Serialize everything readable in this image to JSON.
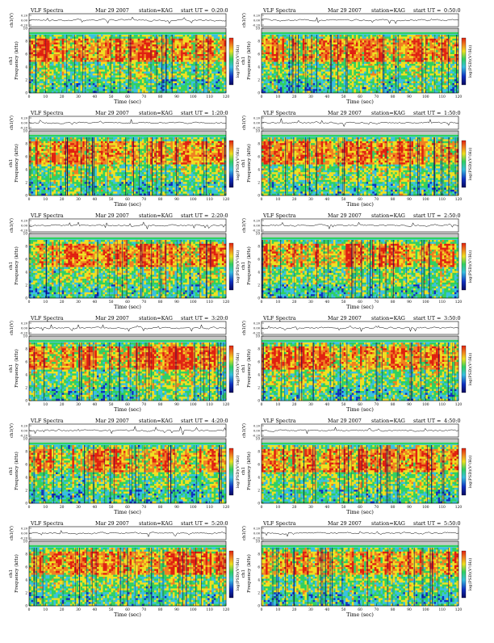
{
  "page_title": "VLF Spectra",
  "shared": {
    "date": "Mar 29 2007",
    "station_label": "station=KAG",
    "start_prefix": "start  UT =",
    "waveform_ylabel": "ch1(V)",
    "spectrogram_ylabel": "Frequency (kHz)",
    "spectrogram_channel": "ch1",
    "xlabel": "Time (sec)",
    "colorbar_label": "log(PSD)(V²/Hz)",
    "waveform_ticks": [
      "0.20",
      "0.00",
      "-0.20"
    ],
    "freq_ticks": [
      "10",
      "8",
      "6",
      "4",
      "2",
      "0"
    ],
    "time_ticks": [
      "0",
      "10",
      "20",
      "30",
      "40",
      "50",
      "60",
      "70",
      "80",
      "90",
      "100",
      "110",
      "120"
    ]
  },
  "colors": {
    "blue": "#1030c0",
    "cyan": "#38c0e0",
    "green": "#30d060",
    "yellow": "#f0e020",
    "orange": "#f08020",
    "red": "#e02010",
    "navy": "#0a0a60",
    "gray": "#c8c8c8"
  },
  "chart_data": [
    {
      "type": "heatmap",
      "title": "VLF Spectra",
      "start_ut": "0:20:0",
      "xlim": [
        0,
        120
      ],
      "ylim_khz": [
        0,
        10
      ],
      "waveform_ylim": [
        -0.2,
        0.2
      ]
    },
    {
      "type": "heatmap",
      "title": "VLF Spectra",
      "start_ut": "0:50:0",
      "xlim": [
        0,
        120
      ],
      "ylim_khz": [
        0,
        10
      ],
      "waveform_ylim": [
        -0.2,
        0.2
      ]
    },
    {
      "type": "heatmap",
      "title": "VLF Spectra",
      "start_ut": "1:20:0",
      "xlim": [
        0,
        120
      ],
      "ylim_khz": [
        0,
        10
      ],
      "waveform_ylim": [
        -0.2,
        0.2
      ]
    },
    {
      "type": "heatmap",
      "title": "VLF Spectra",
      "start_ut": "1:50:0",
      "xlim": [
        0,
        120
      ],
      "ylim_khz": [
        0,
        10
      ],
      "waveform_ylim": [
        -0.2,
        0.2
      ]
    },
    {
      "type": "heatmap",
      "title": "VLF Spectra",
      "start_ut": "2:20:0",
      "xlim": [
        0,
        120
      ],
      "ylim_khz": [
        0,
        10
      ],
      "waveform_ylim": [
        -0.2,
        0.2
      ]
    },
    {
      "type": "heatmap",
      "title": "VLF Spectra",
      "start_ut": "2:50:0",
      "xlim": [
        0,
        120
      ],
      "ylim_khz": [
        0,
        10
      ],
      "waveform_ylim": [
        -0.2,
        0.2
      ]
    },
    {
      "type": "heatmap",
      "title": "VLF Spectra",
      "start_ut": "3:20:0",
      "xlim": [
        0,
        120
      ],
      "ylim_khz": [
        0,
        10
      ],
      "waveform_ylim": [
        -0.2,
        0.2
      ]
    },
    {
      "type": "heatmap",
      "title": "VLF Spectra",
      "start_ut": "3:50:0",
      "xlim": [
        0,
        120
      ],
      "ylim_khz": [
        0,
        10
      ],
      "waveform_ylim": [
        -0.2,
        0.2
      ]
    },
    {
      "type": "heatmap",
      "title": "VLF Spectra",
      "start_ut": "4:20:0",
      "xlim": [
        0,
        120
      ],
      "ylim_khz": [
        0,
        10
      ],
      "waveform_ylim": [
        -0.2,
        0.2
      ]
    },
    {
      "type": "heatmap",
      "title": "VLF Spectra",
      "start_ut": "4:50:0",
      "xlim": [
        0,
        120
      ],
      "ylim_khz": [
        0,
        10
      ],
      "waveform_ylim": [
        -0.2,
        0.2
      ]
    },
    {
      "type": "heatmap",
      "title": "VLF Spectra",
      "start_ut": "5:20:0",
      "xlim": [
        0,
        120
      ],
      "ylim_khz": [
        0,
        10
      ],
      "waveform_ylim": [
        -0.2,
        0.2
      ]
    },
    {
      "type": "heatmap",
      "title": "VLF Spectra",
      "start_ut": "5:50:0",
      "xlim": [
        0,
        120
      ],
      "ylim_khz": [
        0,
        10
      ],
      "waveform_ylim": [
        -0.2,
        0.2
      ]
    }
  ]
}
